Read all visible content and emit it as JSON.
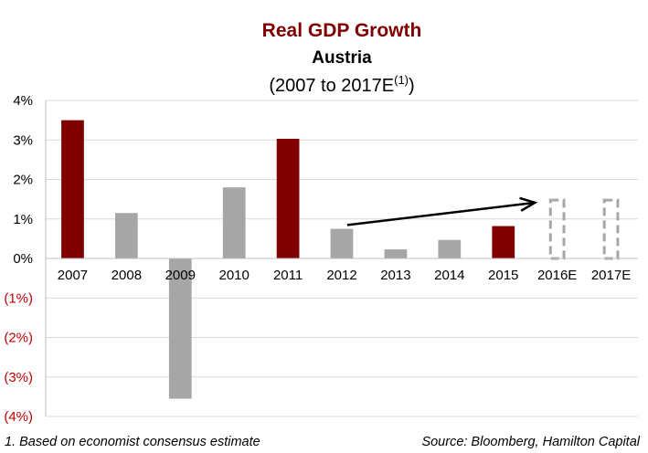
{
  "chart_data": {
    "type": "bar",
    "title": "Real GDP Growth",
    "subtitle": "Austria",
    "period": "(2007 to 2017E",
    "period_sup": "(1)",
    "period_close": ")",
    "categories": [
      "2007",
      "2008",
      "2009",
      "2010",
      "2011",
      "2012",
      "2013",
      "2014",
      "2015",
      "2016E",
      "2017E"
    ],
    "values": [
      3.5,
      1.15,
      -3.55,
      1.8,
      3.03,
      0.75,
      0.23,
      0.47,
      0.82,
      1.5,
      1.5
    ],
    "estimate": [
      false,
      false,
      false,
      false,
      false,
      false,
      false,
      false,
      false,
      true,
      true
    ],
    "highlight": [
      true,
      false,
      false,
      false,
      true,
      false,
      false,
      false,
      true,
      false,
      false
    ],
    "ylim": [
      -4,
      4
    ],
    "yticks": [
      {
        "value": 4,
        "label": "4%"
      },
      {
        "value": 3,
        "label": "3%"
      },
      {
        "value": 2,
        "label": "2%"
      },
      {
        "value": 1,
        "label": "1%"
      },
      {
        "value": 0,
        "label": "0%"
      },
      {
        "value": -1,
        "label": "(1%)"
      },
      {
        "value": -2,
        "label": "(2%)"
      },
      {
        "value": -3,
        "label": "(3%)"
      },
      {
        "value": -4,
        "label": "(4%)"
      }
    ],
    "grid": true,
    "trend_arrow": {
      "from": {
        "category": "2012",
        "value": 0.8
      },
      "to": {
        "category": "2016E",
        "value": 1.5
      }
    },
    "colors": {
      "highlight": "#800000",
      "normal": "#a6a6a6",
      "estimate_outline": "#a6a6a6",
      "title": "#800000",
      "negative_label": "#c00000",
      "positive_label": "#000000",
      "grid": "#d9d9d9",
      "arrow": "#000000"
    }
  },
  "footnote": "1. Based on economist consensus estimate",
  "source": "Source: Bloomberg, Hamilton Capital"
}
